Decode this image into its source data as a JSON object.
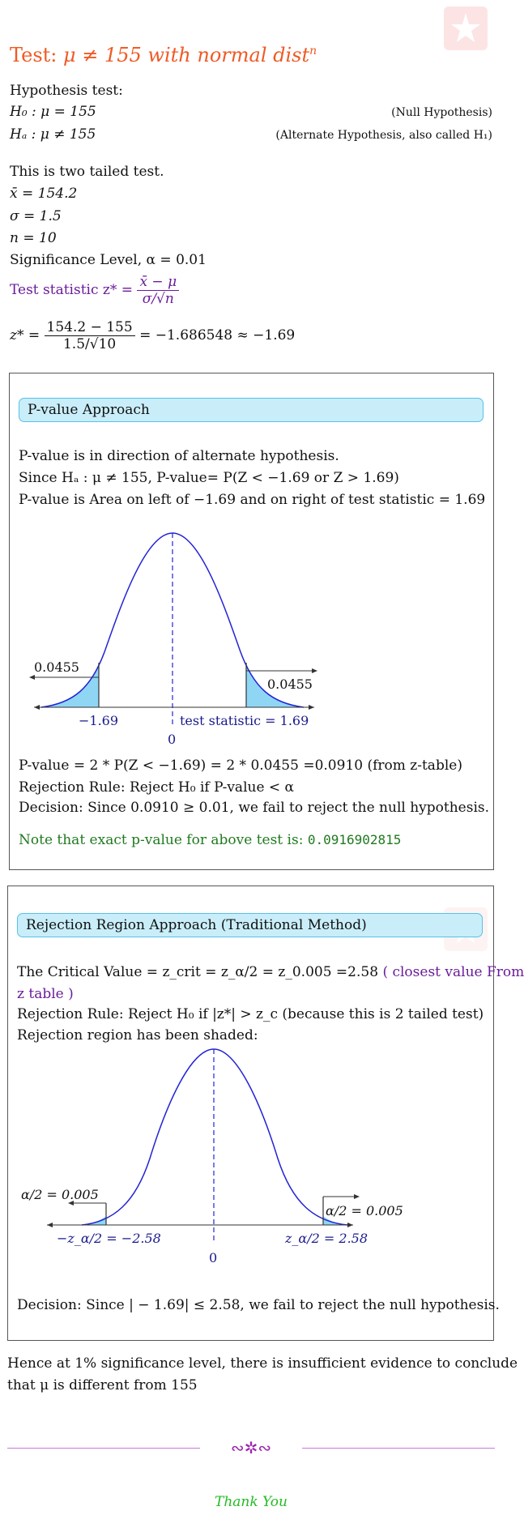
{
  "header": {
    "title_prefix": "Test: ",
    "title_math": "μ ≠ 155 with normal dist",
    "title_sup": "n"
  },
  "hypothesis": {
    "heading": "Hypothesis test:",
    "h0": "H₀ : μ = 155",
    "h0_note": "(Null Hypothesis)",
    "ha": "Hₐ : μ ≠ 155",
    "ha_note": "(Alternate Hypothesis, also called H₁)"
  },
  "given": {
    "tail_note": "This is two tailed test.",
    "xbar": "x̄ = 154.2",
    "sigma": "σ = 1.5",
    "n": "n = 10",
    "alpha": "Significance Level, α = 0.01"
  },
  "statistic": {
    "label": "Test statistic z* = ",
    "formula_num": "x̄ − μ",
    "formula_den": "σ/√n",
    "calc_lhs": "z* = ",
    "calc_num": "154.2 − 155",
    "calc_den": "1.5/√10",
    "calc_rhs": "= −1.686548 ≈ −1.69"
  },
  "pvalue_section": {
    "banner": "P-value Approach",
    "line1": "P-value is in direction of alternate hypothesis.",
    "line2": "Since Hₐ : μ ≠ 155, P-value= P(Z < −1.69 or Z > 1.69)",
    "line3": "P-value is Area on left of −1.69 and on right of test statistic = 1.69",
    "graph": {
      "left_area": "0.0455",
      "right_area": "0.0455",
      "left_tick": "−1.69",
      "right_tick": "test statistic = 1.69",
      "center": "0"
    },
    "calc": "P-value = 2 * P(Z < −1.69) = 2 * 0.0455 =0.0910 (from z-table)",
    "rule": "Rejection Rule: Reject H₀ if P-value < α",
    "decision": "Decision: Since 0.0910 ≥ 0.01, we fail to reject the null hypothesis.",
    "note_text": "Note that exact p-value for above test is: ",
    "note_value": "0.0916902815"
  },
  "rejection_section": {
    "banner": "Rejection Region Approach (Traditional Method)",
    "crit_text": "The Critical Value = z_crit = z_α/2 = z_0.005 =2.58",
    "crit_note1": "( closest value From",
    "crit_note2": "z table )",
    "rule": "Rejection Rule: Reject H₀ if |z*| > z_c (because this is 2 tailed test)",
    "shaded": "Rejection region has been shaded:",
    "graph": {
      "left_area": "α/2 = 0.005",
      "right_area": "α/2 = 0.005",
      "left_tick": "−z_α/2 = −2.58",
      "right_tick": "z_α/2 = 2.58",
      "center": "0"
    },
    "decision": "Decision: Since | − 1.69| ≤ 2.58, we fail to reject the null hypothesis."
  },
  "conclusion": {
    "line1": "Hence at 1% significance level, there is insufficient evidence to conclude",
    "line2": "that μ is different from 155"
  },
  "footer": {
    "ornament": "∾✲∾",
    "thanks": "Thank You"
  },
  "colors": {
    "title": "#f05a24",
    "purple": "#6a1b9a",
    "banner_bg": "#c9eefa",
    "curve": "#2323d6",
    "shade": "#8fd6f5",
    "green": "#1f7a1f",
    "thanks": "#22bb22"
  }
}
